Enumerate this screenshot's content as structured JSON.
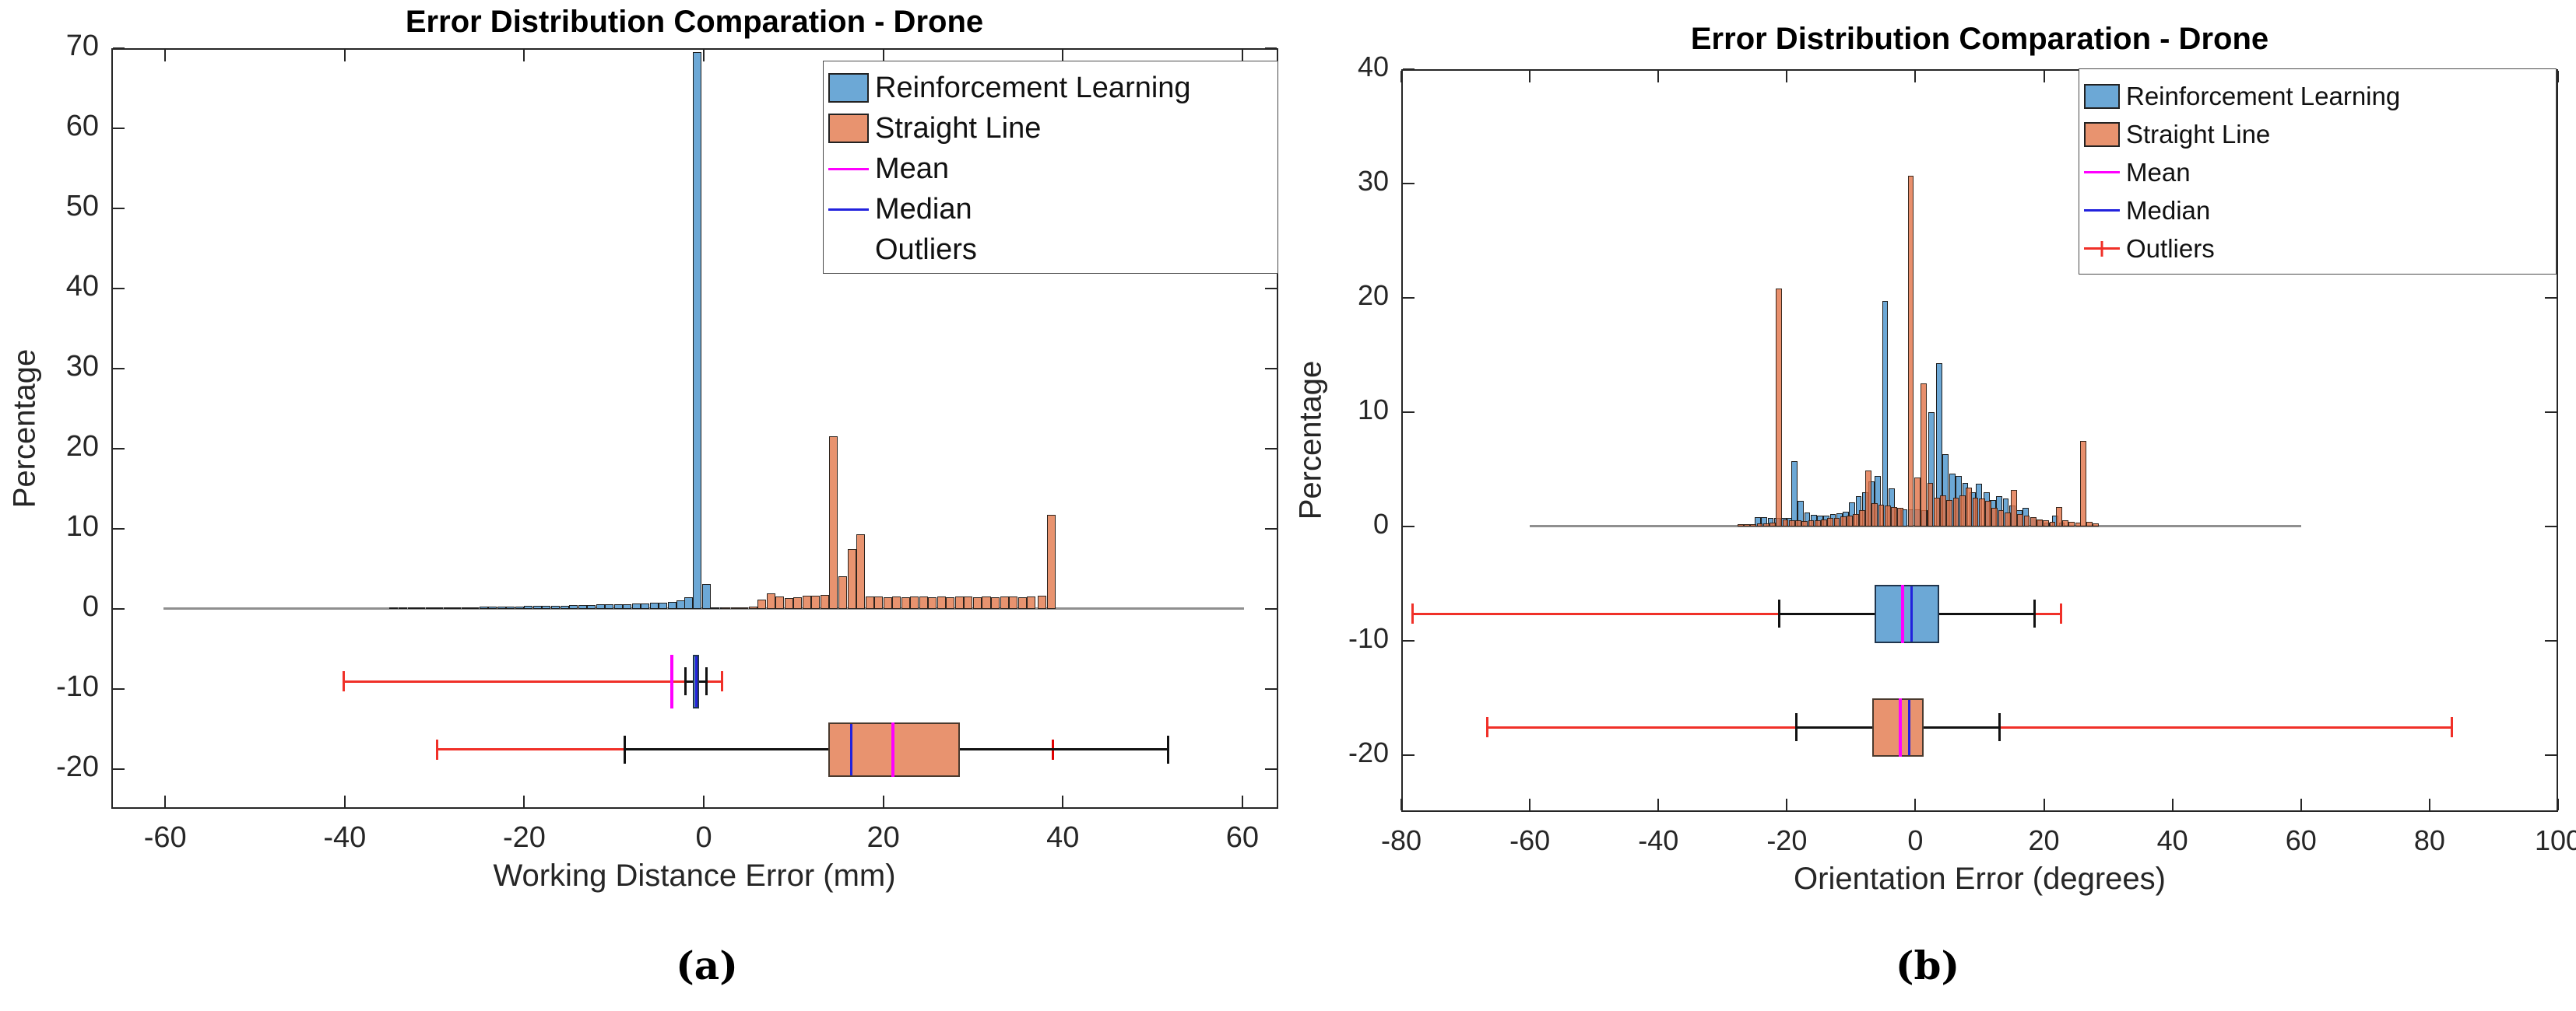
{
  "panels": {
    "a": "(a)",
    "b": "(b)"
  },
  "colors": {
    "reinforcement_learning": "#6CA8D6",
    "straight_line": "#E8936F",
    "mean": "#FF00FF",
    "median": "#2222DD",
    "outliers": "#F03028",
    "zero_line": "#8F8F8F",
    "axis": "#262626"
  },
  "chart_data": [
    {
      "type": "bar",
      "subtype": "histogram-with-boxplots",
      "panel_label": "(a)",
      "title": "Error Distribution Comparation - Drone",
      "xlabel": "Working Distance Error (mm)",
      "ylabel": "Percentage",
      "xlim": [
        -66,
        64
      ],
      "ylim": [
        -25,
        70
      ],
      "xticks": [
        -60,
        -40,
        -20,
        0,
        20,
        40,
        60
      ],
      "yticks": [
        -20,
        -10,
        0,
        10,
        20,
        30,
        40,
        50,
        60,
        70
      ],
      "bin_width": 1,
      "zero_line_span": [
        -60.2,
        60.2
      ],
      "legend": {
        "position": "top-right",
        "items": [
          {
            "label": "Reinforcement Learning",
            "marker": "swatch-blue"
          },
          {
            "label": "Straight Line",
            "marker": "swatch-orange"
          },
          {
            "label": "Mean",
            "marker": "magenta-line"
          },
          {
            "label": "Median",
            "marker": "blue-line"
          },
          {
            "label": "Outliers",
            "marker": "none"
          }
        ]
      },
      "series": [
        {
          "name": "Reinforcement Learning",
          "key": "rl",
          "bars": [
            [
              -35,
              0.05
            ],
            [
              -34,
              0.07
            ],
            [
              -33,
              0.1
            ],
            [
              -32,
              0.12
            ],
            [
              -31,
              0.14
            ],
            [
              -30,
              0.15
            ],
            [
              -29,
              0.17
            ],
            [
              -28,
              0.18
            ],
            [
              -27,
              0.19
            ],
            [
              -26,
              0.2
            ],
            [
              -25,
              0.22
            ],
            [
              -24,
              0.24
            ],
            [
              -23,
              0.27
            ],
            [
              -22,
              0.29
            ],
            [
              -21,
              0.3
            ],
            [
              -20,
              0.32
            ],
            [
              -19,
              0.34
            ],
            [
              -18,
              0.37
            ],
            [
              -17,
              0.39
            ],
            [
              -16,
              0.4
            ],
            [
              -15,
              0.42
            ],
            [
              -14,
              0.44
            ],
            [
              -13,
              0.47
            ],
            [
              -12,
              0.5
            ],
            [
              -11,
              0.52
            ],
            [
              -10,
              0.55
            ],
            [
              -9,
              0.58
            ],
            [
              -8,
              0.61
            ],
            [
              -7,
              0.65
            ],
            [
              -6,
              0.7
            ],
            [
              -5,
              0.75
            ],
            [
              -4,
              0.85
            ],
            [
              -3,
              1.0
            ],
            [
              -2.2,
              1.4
            ],
            [
              -1.2,
              69.5
            ],
            [
              -0.2,
              3.05
            ],
            [
              0.8,
              0.2
            ],
            [
              1.8,
              0.08
            ]
          ]
        },
        {
          "name": "Straight Line",
          "key": "sl",
          "bars": [
            [
              2,
              0.06
            ],
            [
              3,
              0.1
            ],
            [
              4,
              0.15
            ],
            [
              5,
              0.3
            ],
            [
              6,
              1.1
            ],
            [
              7,
              1.9
            ],
            [
              8,
              1.5
            ],
            [
              9,
              1.3
            ],
            [
              10,
              1.45
            ],
            [
              11,
              1.6
            ],
            [
              12,
              1.65
            ],
            [
              13,
              1.75
            ],
            [
              14,
              21.5
            ],
            [
              15,
              4.0
            ],
            [
              16,
              7.4
            ],
            [
              17,
              9.3
            ],
            [
              18,
              1.55
            ],
            [
              19,
              1.5
            ],
            [
              20,
              1.45
            ],
            [
              21,
              1.5
            ],
            [
              22,
              1.45
            ],
            [
              23,
              1.5
            ],
            [
              24,
              1.5
            ],
            [
              25,
              1.45
            ],
            [
              26,
              1.5
            ],
            [
              27,
              1.45
            ],
            [
              28,
              1.5
            ],
            [
              29,
              1.5
            ],
            [
              30,
              1.45
            ],
            [
              31,
              1.5
            ],
            [
              32,
              1.45
            ],
            [
              33,
              1.5
            ],
            [
              34,
              1.5
            ],
            [
              35,
              1.45
            ],
            [
              36,
              1.5
            ],
            [
              37.2,
              1.6
            ],
            [
              38.2,
              11.7
            ]
          ]
        }
      ],
      "boxplots": [
        {
          "series": "Reinforcement Learning",
          "row_center": -9.1,
          "half_height": 3.38,
          "q1": -1.26,
          "q3": -0.48,
          "median": -0.85,
          "mean": -3.6,
          "whisker_low": -2.04,
          "whisker_high": 0.29,
          "outlier_segments": [
            [
              -40.1,
              -2.04
            ],
            [
              0.29,
              2.05
            ]
          ],
          "outlier_caps": [
            -40.1,
            2.05
          ],
          "outlier_ticks": []
        },
        {
          "series": "Straight Line",
          "row_center": -17.6,
          "half_height": 3.4,
          "q1": 13.9,
          "q3": 28.5,
          "median": 16.4,
          "mean": 21.1,
          "whisker_low": -8.8,
          "whisker_high": 51.7,
          "outlier_segments": [
            [
              -29.7,
              -8.8
            ]
          ],
          "outlier_caps": [
            -29.7
          ],
          "outlier_ticks": [
            38.9
          ]
        }
      ]
    },
    {
      "type": "bar",
      "subtype": "histogram-with-boxplots",
      "panel_label": "(b)",
      "title": "Error Distribution Comparation - Drone",
      "xlabel": "Orientation Error (degrees)",
      "ylabel": "Percentage",
      "xlim": [
        -80,
        100
      ],
      "ylim": [
        -25,
        40
      ],
      "xticks": [
        -80,
        -60,
        -40,
        -20,
        0,
        20,
        40,
        60,
        80,
        100
      ],
      "yticks": [
        -20,
        -10,
        0,
        10,
        20,
        30,
        40
      ],
      "bin_width": 1,
      "zero_line_span": [
        -60,
        60
      ],
      "legend": {
        "position": "top-right",
        "items": [
          {
            "label": "Reinforcement Learning",
            "marker": "swatch-blue"
          },
          {
            "label": "Straight Line",
            "marker": "swatch-orange"
          },
          {
            "label": "Mean",
            "marker": "magenta-line"
          },
          {
            "label": "Median",
            "marker": "blue-line"
          },
          {
            "label": "Outliers",
            "marker": "red-line-plus"
          }
        ]
      },
      "series": [
        {
          "name": "Reinforcement Learning",
          "key": "rl",
          "bars": [
            [
              -25,
              0.8
            ],
            [
              -24,
              0.8
            ],
            [
              -23,
              0.75
            ],
            [
              -22,
              0.7
            ],
            [
              -21,
              0.7
            ],
            [
              -20,
              0.75
            ],
            [
              -19.3,
              5.7
            ],
            [
              -18.3,
              2.2
            ],
            [
              -17.3,
              1.2
            ],
            [
              -16.3,
              1.0
            ],
            [
              -15.3,
              0.9
            ],
            [
              -14.3,
              0.95
            ],
            [
              -13.3,
              1.05
            ],
            [
              -12.3,
              1.15
            ],
            [
              -11.3,
              1.3
            ],
            [
              -10.3,
              2.1
            ],
            [
              -9.3,
              2.6
            ],
            [
              -8.3,
              3.0
            ],
            [
              -7.3,
              3.9
            ],
            [
              -6.3,
              4.4
            ],
            [
              -5.2,
              19.7
            ],
            [
              -4.2,
              3.3
            ],
            [
              -3.2,
              1.6
            ],
            [
              -2.2,
              1.5
            ],
            [
              -1.2,
              1.5
            ],
            [
              -0.2,
              1.5
            ],
            [
              0.9,
              1.4
            ],
            [
              2.0,
              10.0
            ],
            [
              3.2,
              14.3
            ],
            [
              4.2,
              6.3
            ],
            [
              5.3,
              4.6
            ],
            [
              6.3,
              4.4
            ],
            [
              7.3,
              3.8
            ],
            [
              8.4,
              3.0
            ],
            [
              9.4,
              3.7
            ],
            [
              10.6,
              3.0
            ],
            [
              11.6,
              2.3
            ],
            [
              12.6,
              2.6
            ],
            [
              13.6,
              2.4
            ],
            [
              14.6,
              1.8
            ],
            [
              15.7,
              1.4
            ],
            [
              16.7,
              1.6
            ],
            [
              17.9,
              0.8
            ],
            [
              19,
              0.5
            ],
            [
              20,
              0.3
            ],
            [
              21.3,
              0.9
            ],
            [
              22.3,
              0.3
            ]
          ]
        },
        {
          "name": "Straight Line",
          "key": "sl",
          "bars": [
            [
              -27.7,
              0.15
            ],
            [
              -26.7,
              0.18
            ],
            [
              -25.7,
              0.2
            ],
            [
              -24.7,
              0.22
            ],
            [
              -23.7,
              0.25
            ],
            [
              -22.7,
              0.3
            ],
            [
              -21.7,
              20.8
            ],
            [
              -20.7,
              0.6
            ],
            [
              -19.7,
              0.55
            ],
            [
              -18.7,
              0.5
            ],
            [
              -17.7,
              0.45
            ],
            [
              -16.7,
              0.5
            ],
            [
              -15.7,
              0.55
            ],
            [
              -14.7,
              0.6
            ],
            [
              -13.7,
              0.7
            ],
            [
              -12.7,
              0.75
            ],
            [
              -11.7,
              0.85
            ],
            [
              -10.7,
              0.95
            ],
            [
              -9.7,
              1.1
            ],
            [
              -8.8,
              1.4
            ],
            [
              -7.8,
              4.9
            ],
            [
              -6.8,
              2.0
            ],
            [
              -5.8,
              1.9
            ],
            [
              -4.8,
              1.8
            ],
            [
              -3.8,
              1.7
            ],
            [
              -2.8,
              1.6
            ],
            [
              -1.2,
              30.7
            ],
            [
              -0.2,
              4.3
            ],
            [
              0.85,
              12.5
            ],
            [
              1.85,
              3.8
            ],
            [
              2.85,
              2.5
            ],
            [
              3.85,
              2.7
            ],
            [
              4.85,
              2.3
            ],
            [
              5.85,
              2.5
            ],
            [
              6.85,
              2.7
            ],
            [
              7.85,
              3.4
            ],
            [
              8.85,
              2.5
            ],
            [
              9.85,
              2.4
            ],
            [
              10.85,
              2.2
            ],
            [
              11.85,
              1.6
            ],
            [
              12.85,
              1.4
            ],
            [
              13.85,
              1.2
            ],
            [
              14.85,
              3.2
            ],
            [
              15.85,
              1.1
            ],
            [
              16.85,
              0.9
            ],
            [
              17.85,
              0.8
            ],
            [
              18.85,
              0.6
            ],
            [
              19.85,
              0.5
            ],
            [
              20.85,
              0.4
            ],
            [
              21.85,
              1.7
            ],
            [
              22.85,
              0.5
            ],
            [
              23.85,
              0.4
            ],
            [
              24.85,
              0.3
            ],
            [
              25.6,
              7.5
            ],
            [
              26.6,
              0.4
            ],
            [
              27.6,
              0.25
            ]
          ]
        }
      ],
      "boxplots": [
        {
          "series": "Reinforcement Learning",
          "row_center": -7.65,
          "half_height": 2.55,
          "q1": -6.4,
          "q3": 3.66,
          "median": -0.64,
          "mean": -1.97,
          "whisker_low": -21.2,
          "whisker_high": 18.56,
          "outlier_segments": [
            [
              -78.3,
              -21.2
            ],
            [
              18.56,
              22.6
            ]
          ],
          "outlier_caps": [
            -78.3,
            22.6
          ],
          "outlier_ticks": []
        },
        {
          "series": "Straight Line",
          "row_center": -17.6,
          "half_height": 2.57,
          "q1": -6.7,
          "q3": 1.24,
          "median": -0.97,
          "mean": -2.3,
          "whisker_low": -18.5,
          "whisker_high": 13.1,
          "outlier_segments": [
            [
              -66.6,
              -18.5
            ],
            [
              13.1,
              83.5
            ]
          ],
          "outlier_caps": [
            -66.6,
            83.5
          ],
          "outlier_ticks": []
        }
      ]
    }
  ]
}
